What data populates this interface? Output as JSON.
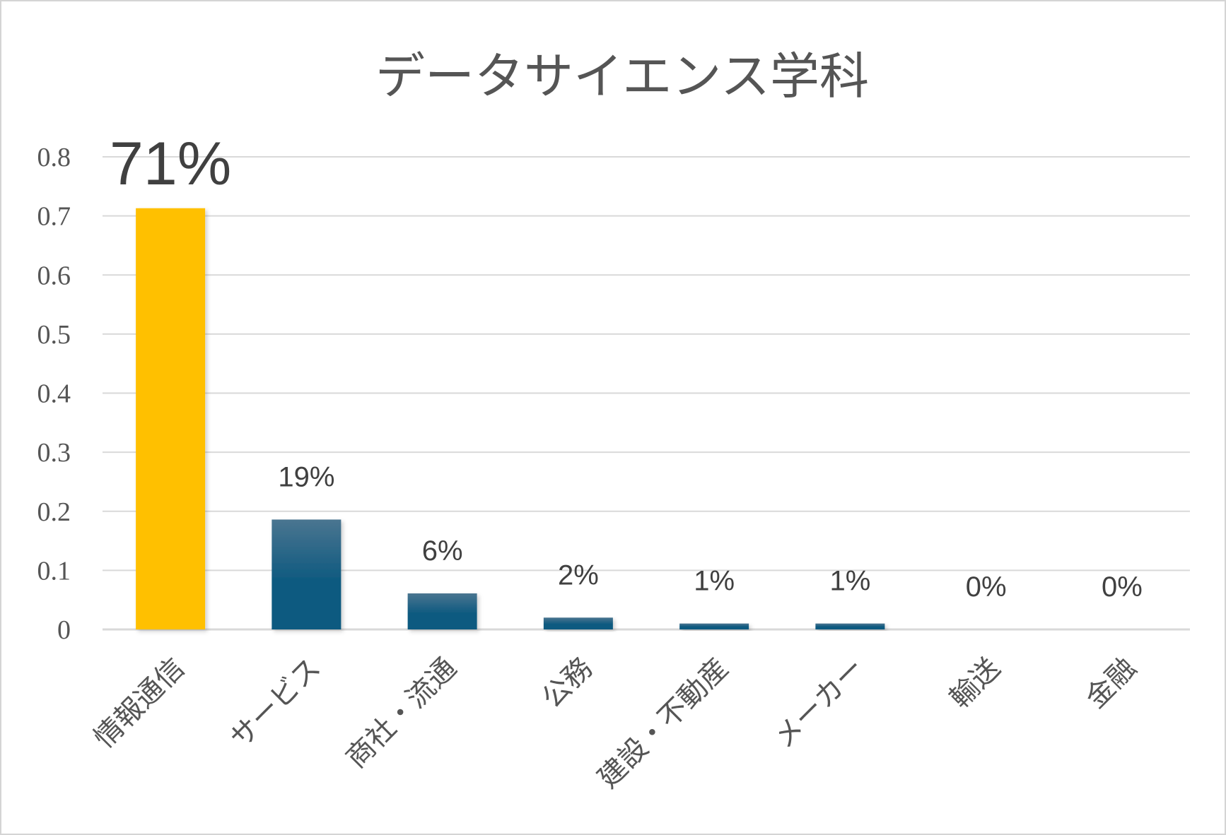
{
  "chart_data": {
    "type": "bar",
    "title": "データサイエンス学科",
    "categories": [
      "情報通信",
      "サービス",
      "商社・流通",
      "公務",
      "建設・不動産",
      "メーカー",
      "輸送",
      "金融"
    ],
    "values": [
      0.713,
      0.186,
      0.061,
      0.02,
      0.01,
      0.01,
      0.0,
      0.0
    ],
    "data_labels": [
      "71%",
      "19%",
      "6%",
      "2%",
      "1%",
      "1%",
      "0%",
      "0%"
    ],
    "ylim": [
      0,
      0.8
    ],
    "yticks": [
      0,
      0.1,
      0.2,
      0.3,
      0.4,
      0.5,
      0.6,
      0.7,
      0.8
    ],
    "ytick_labels": [
      "0",
      "0.1",
      "0.2",
      "0.3",
      "0.4",
      "0.5",
      "0.6",
      "0.7",
      "0.8"
    ],
    "xlabel": "",
    "ylabel": "",
    "grid": true,
    "legend": "none",
    "highlight_index": 0,
    "colors": {
      "highlight_bar": "#FFC000",
      "bar_top": "#4a7590",
      "bar_bottom": "#0f5a80",
      "highlight_label": "#FF3300",
      "label": "#404040",
      "grid": "#d9d9d9",
      "text": "#555555"
    }
  }
}
